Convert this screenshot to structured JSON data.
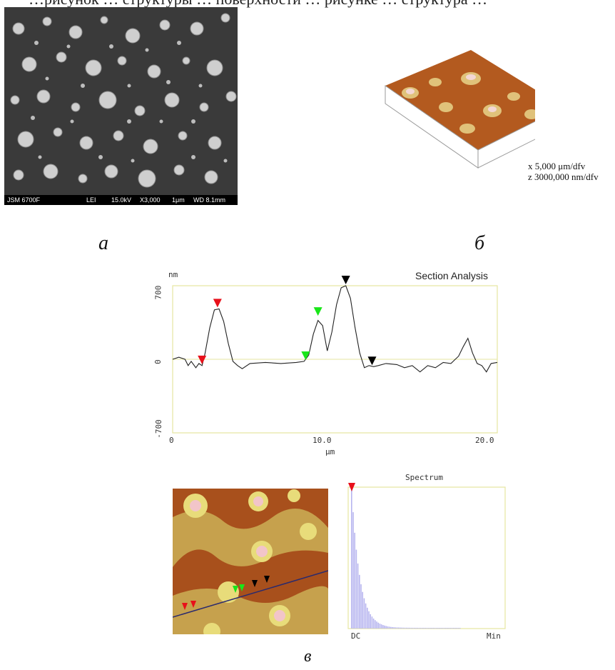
{
  "top_text": "…рисунок … структуры … поверхности … рисунке … структура …",
  "sem": {
    "info": {
      "model": "JSM 6700F",
      "mode": "LEI",
      "voltage": "15.0kV",
      "mag": "X3,000",
      "scale": "1μm",
      "wd": "WD 8.1mm"
    }
  },
  "afm3d": {
    "x_scale": "x 5,000 μm/dfv",
    "z_scale": "z 3000,000 nm/dfv"
  },
  "captions": {
    "a": "а",
    "b": "б",
    "c": "в"
  },
  "section": {
    "title": "Section Analysis",
    "y_unit": "nm",
    "x_unit": "μm",
    "y_ticks": [
      "700",
      "0",
      "-700"
    ],
    "x_ticks": [
      "0",
      "10.0",
      "20.0"
    ],
    "marker_colors": {
      "red": "#e8101a",
      "green": "#19e619",
      "black": "#000000"
    },
    "frame_color": "#e6e6a0"
  },
  "chart_data": {
    "type": "line",
    "title": "Section Analysis",
    "xlabel": "μm",
    "ylabel": "nm",
    "xlim": [
      0,
      21
    ],
    "ylim": [
      -700,
      700
    ],
    "x": [
      0,
      0.4,
      0.8,
      1.0,
      1.2,
      1.5,
      1.7,
      1.9,
      2.1,
      2.4,
      2.7,
      3.0,
      3.3,
      3.6,
      3.9,
      4.2,
      4.5,
      5.0,
      6.0,
      7.0,
      8.0,
      8.5,
      8.8,
      9.1,
      9.4,
      9.7,
      10.0,
      10.3,
      10.6,
      10.9,
      11.2,
      11.5,
      11.8,
      12.1,
      12.4,
      12.7,
      13.0,
      13.3,
      13.8,
      14.5,
      15.0,
      15.5,
      16.0,
      16.5,
      17.0,
      17.5,
      18.0,
      18.5,
      18.8,
      19.1,
      19.4,
      19.7,
      20.0,
      20.3,
      20.6,
      21.0
    ],
    "y": [
      0,
      20,
      0,
      -60,
      -20,
      -80,
      -40,
      -60,
      60,
      300,
      470,
      480,
      360,
      150,
      -20,
      -60,
      -90,
      -40,
      -30,
      -40,
      -30,
      -20,
      40,
      240,
      370,
      320,
      80,
      260,
      520,
      680,
      700,
      580,
      300,
      60,
      -80,
      -60,
      -70,
      -60,
      -40,
      -50,
      -80,
      -60,
      -120,
      -60,
      -80,
      -30,
      -40,
      30,
      120,
      200,
      60,
      -40,
      -60,
      -120,
      -40,
      -30
    ],
    "markers": [
      {
        "color": "red",
        "x": 2.9,
        "y": 480
      },
      {
        "color": "red",
        "x": 1.9,
        "y": -60
      },
      {
        "color": "green",
        "x": 9.4,
        "y": 400
      },
      {
        "color": "green",
        "x": 8.6,
        "y": -20
      },
      {
        "color": "black",
        "x": 11.2,
        "y": 700
      },
      {
        "color": "black",
        "x": 12.9,
        "y": -70
      }
    ]
  },
  "spectrum": {
    "title": "Spectrum",
    "x_left": "DC",
    "x_right": "Min",
    "bar_color": "#b7b5ef"
  }
}
